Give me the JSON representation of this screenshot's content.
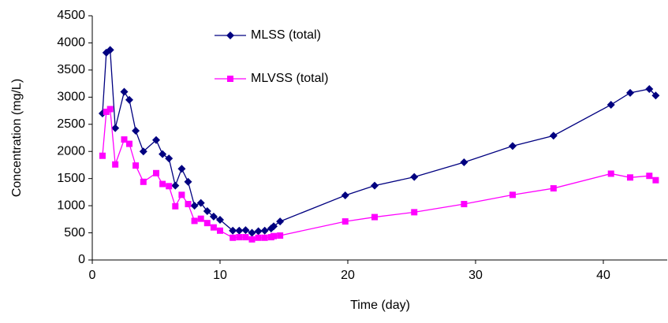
{
  "chart_data": {
    "type": "line",
    "x_label": "Time (day)",
    "y_label": "Concentration (mg/L)",
    "x": [
      0.8,
      1.1,
      1.4,
      1.8,
      2.5,
      2.9,
      3.4,
      4,
      5,
      5.5,
      6,
      6.5,
      7,
      7.5,
      8,
      8.5,
      9,
      9.5,
      10,
      11,
      11.5,
      12,
      12.5,
      13,
      13.5,
      14,
      14.2,
      14.7,
      19.8,
      22.1,
      25.2,
      29.1,
      32.9,
      36.1,
      40.6,
      42.1,
      43.6,
      44.1
    ],
    "series": [
      {
        "name": "MLSS (total)",
        "color": "#000080",
        "marker": "diamond",
        "values": [
          2700,
          3820,
          3870,
          2430,
          3100,
          2950,
          2380,
          2000,
          2210,
          1950,
          1870,
          1370,
          1680,
          1440,
          1000,
          1050,
          900,
          800,
          740,
          540,
          540,
          550,
          500,
          530,
          540,
          580,
          620,
          710,
          1190,
          1370,
          1530,
          1800,
          2100,
          2290,
          2860,
          3080,
          3150,
          3030
        ]
      },
      {
        "name": "MLVSS (total)",
        "color": "#ff00ff",
        "marker": "square",
        "values": [
          1920,
          2730,
          2780,
          1760,
          2220,
          2140,
          1740,
          1440,
          1600,
          1400,
          1360,
          990,
          1200,
          1030,
          720,
          760,
          680,
          600,
          540,
          410,
          420,
          420,
          380,
          410,
          410,
          420,
          440,
          450,
          710,
          790,
          880,
          1030,
          1200,
          1320,
          1590,
          1520,
          1550,
          1470
        ]
      }
    ],
    "xlim": [
      0,
      45
    ],
    "xticks": [
      0,
      10,
      20,
      30,
      40
    ],
    "ylim": [
      0,
      4500
    ],
    "yticks": [
      0,
      500,
      1000,
      1500,
      2000,
      2500,
      3000,
      3500,
      4000,
      4500
    ],
    "grid": false
  }
}
